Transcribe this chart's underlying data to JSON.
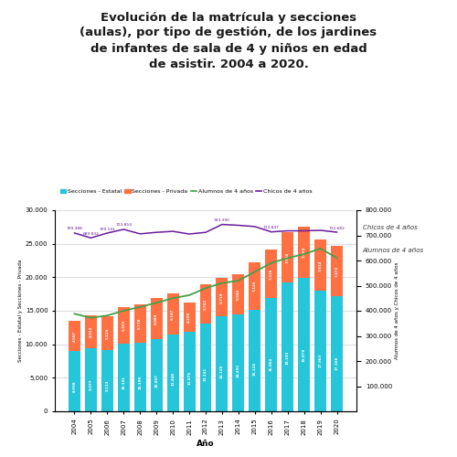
{
  "title_line1": "Evolución de la matrícula y secciones",
  "title_line2": "(aulas), por tipo de gestión, de los jardines",
  "title_line3": "de infantes de sala de 4 y niños en edad",
  "title_line4": "de asistir. 2004 a 2020.",
  "years": [
    2004,
    2005,
    2006,
    2007,
    2008,
    2009,
    2010,
    2011,
    2012,
    2013,
    2014,
    2015,
    2016,
    2017,
    2018,
    2019,
    2020
  ],
  "secciones_estatal": [
    8998,
    9377,
    9113,
    10141,
    10198,
    10807,
    11448,
    11875,
    13141,
    14128,
    14493,
    15124,
    16864,
    19193,
    19878,
    17963,
    17168
  ],
  "secciones_privada": [
    4507,
    4923,
    5124,
    5359,
    5778,
    6089,
    6147,
    4299,
    5762,
    5719,
    5944,
    7126,
    7336,
    7504,
    7663,
    7614,
    7472
  ],
  "alumnos_4anos": [
    388000,
    372000,
    381000,
    400000,
    415000,
    432000,
    450000,
    462000,
    490000,
    510000,
    520000,
    555000,
    590000,
    610000,
    625000,
    648000,
    610000
  ],
  "chicos_full": [
    709388,
    689832,
    709141,
    723854,
    706000,
    712000,
    716000,
    705420,
    712000,
    743390,
    740000,
    735000,
    713847,
    718000,
    718000,
    720000,
    712682
  ],
  "bar_color_estatal": "#26c6da",
  "bar_color_privada": "#ff7043",
  "line_color_alumnos": "#43a047",
  "line_color_chicos": "#6a1b9a",
  "background_color": "#ffffff",
  "ylabel_left": "Secciones - Estatal y Secciones - Privada",
  "ylabel_right": "Alumnos de 4 años y Chicos de 4 años",
  "xlabel": "Año",
  "ylim_left": [
    0,
    30000
  ],
  "ylim_right": [
    0,
    800000
  ],
  "yticks_left": [
    0,
    5000,
    10000,
    15000,
    20000,
    25000,
    30000
  ],
  "yticks_right": [
    100000,
    200000,
    300000,
    400000,
    500000,
    600000,
    700000,
    800000
  ],
  "legend_labels": [
    "Secciones - Estatal",
    "Secciones - Privada",
    "Alumnos de 4 años",
    "Chicos de 4 años"
  ],
  "right_label_chicos": "Chicos de 4 años",
  "right_label_alumnos": "Alumnos de 4 años",
  "bar_labels_estatal": [
    "8.998",
    "9.377",
    "9.113",
    "10.141",
    "10.198",
    "10.807",
    "11.448",
    "11.875",
    "13.141",
    "14.128",
    "14.493",
    "15.124",
    "16.864",
    "19.193",
    "19.878",
    "17.963",
    "17.168"
  ],
  "bar_labels_privada": [
    "4.507",
    "4.923",
    "5.124",
    "5.359",
    "5.778",
    "6.089",
    "6.147",
    "4.299",
    "5.762",
    "5.719",
    "5.944",
    "7.126",
    "7.336",
    "7.504",
    "7.663",
    "7.614",
    "7.472"
  ],
  "chicos_annotations": [
    {
      "idx": 0,
      "label": "709.388",
      "val": 709388
    },
    {
      "idx": 1,
      "label": "689.832",
      "val": 689832
    },
    {
      "idx": 2,
      "label": "709.141",
      "val": 709141
    },
    {
      "idx": 3,
      "label": "723.854",
      "val": 723854
    },
    {
      "idx": 9,
      "label": "743.390",
      "val": 743390
    },
    {
      "idx": 12,
      "label": "713.847",
      "val": 713847
    },
    {
      "idx": 16,
      "label": "712.682",
      "val": 712682
    }
  ]
}
